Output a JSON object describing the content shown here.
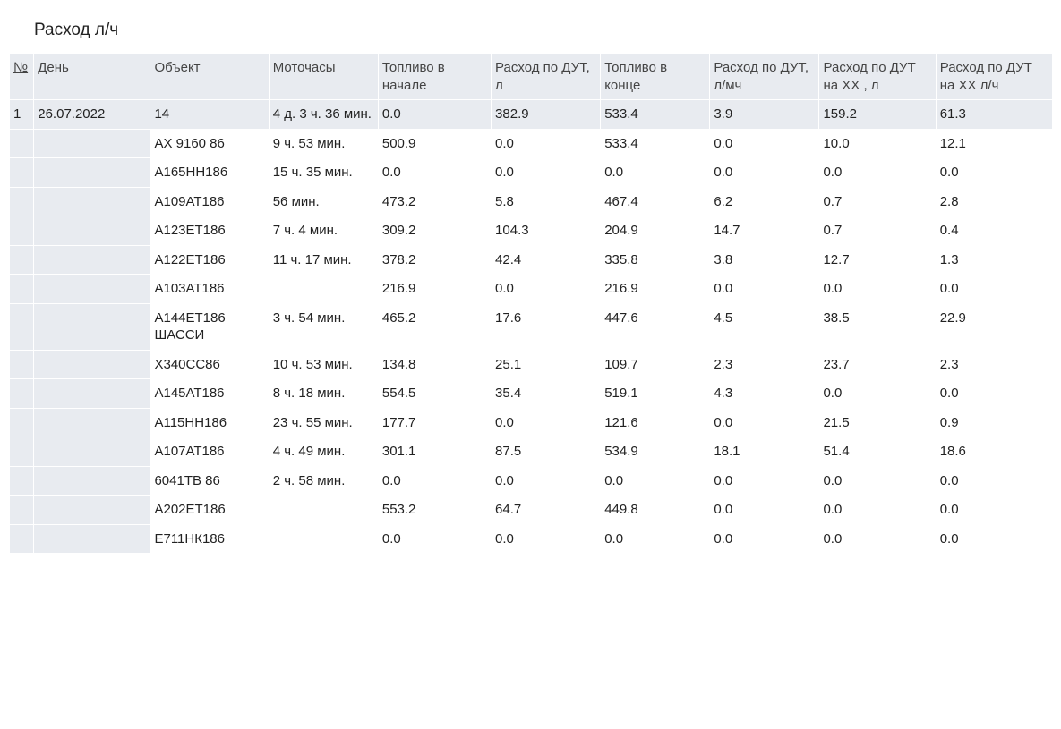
{
  "title": "Расход л/ч",
  "columns": [
    "№",
    "День",
    "Объект",
    "Моточасы",
    "Топливо в начале",
    "Расход по ДУТ, л",
    "Топливо в конце",
    "Расход по ДУТ, л/мч",
    "Расход по ДУТ на ХХ , л",
    "Расход по ДУТ на ХХ л/ч"
  ],
  "rows": [
    {
      "type": "summary",
      "num": "1",
      "day": "26.07.2022",
      "obj": "14",
      "hours": "4 д. 3 ч. 36 мин.",
      "fuel_start": "0.0",
      "cons_l": "382.9",
      "fuel_end": "533.4",
      "cons_lmh": "3.9",
      "cons_xx_l": "159.2",
      "cons_xx_lh": "61.3"
    },
    {
      "type": "detail",
      "num": "",
      "day": "",
      "obj": "АХ 9160 86",
      "hours": "9 ч. 53 мин.",
      "fuel_start": "500.9",
      "cons_l": "0.0",
      "fuel_end": "533.4",
      "cons_lmh": "0.0",
      "cons_xx_l": "10.0",
      "cons_xx_lh": "12.1"
    },
    {
      "type": "detail",
      "num": "",
      "day": "",
      "obj": "А165НН186",
      "hours": "15 ч. 35 мин.",
      "fuel_start": "0.0",
      "cons_l": "0.0",
      "fuel_end": "0.0",
      "cons_lmh": "0.0",
      "cons_xx_l": "0.0",
      "cons_xx_lh": "0.0"
    },
    {
      "type": "detail",
      "num": "",
      "day": "",
      "obj": "А109АТ186",
      "hours": "56 мин.",
      "fuel_start": "473.2",
      "cons_l": "5.8",
      "fuel_end": "467.4",
      "cons_lmh": "6.2",
      "cons_xx_l": "0.7",
      "cons_xx_lh": "2.8"
    },
    {
      "type": "detail",
      "num": "",
      "day": "",
      "obj": "А123ЕТ186",
      "hours": "7 ч. 4 мин.",
      "fuel_start": "309.2",
      "cons_l": "104.3",
      "fuel_end": "204.9",
      "cons_lmh": "14.7",
      "cons_xx_l": "0.7",
      "cons_xx_lh": "0.4"
    },
    {
      "type": "detail",
      "num": "",
      "day": "",
      "obj": "А122ЕТ186",
      "hours": "11 ч. 17 мин.",
      "fuel_start": "378.2",
      "cons_l": "42.4",
      "fuel_end": "335.8",
      "cons_lmh": "3.8",
      "cons_xx_l": "12.7",
      "cons_xx_lh": "1.3"
    },
    {
      "type": "detail",
      "num": "",
      "day": "",
      "obj": "А103АТ186",
      "hours": "",
      "fuel_start": "216.9",
      "cons_l": "0.0",
      "fuel_end": "216.9",
      "cons_lmh": "0.0",
      "cons_xx_l": "0.0",
      "cons_xx_lh": "0.0"
    },
    {
      "type": "detail",
      "num": "",
      "day": "",
      "obj": "А144ЕТ186 ШАССИ",
      "hours": "3 ч. 54 мин.",
      "fuel_start": "465.2",
      "cons_l": "17.6",
      "fuel_end": "447.6",
      "cons_lmh": "4.5",
      "cons_xx_l": "38.5",
      "cons_xx_lh": "22.9"
    },
    {
      "type": "detail",
      "num": "",
      "day": "",
      "obj": " Х340СС86",
      "hours": "10 ч. 53 мин.",
      "fuel_start": "134.8",
      "cons_l": "25.1",
      "fuel_end": "109.7",
      "cons_lmh": "2.3",
      "cons_xx_l": "23.7",
      "cons_xx_lh": "2.3"
    },
    {
      "type": "detail",
      "num": "",
      "day": "",
      "obj": "А145АТ186",
      "hours": "8 ч. 18 мин.",
      "fuel_start": "554.5",
      "cons_l": "35.4",
      "fuel_end": "519.1",
      "cons_lmh": "4.3",
      "cons_xx_l": "0.0",
      "cons_xx_lh": "0.0"
    },
    {
      "type": "detail",
      "num": "",
      "day": "",
      "obj": "А115НН186",
      "hours": "23 ч. 55 мин.",
      "fuel_start": "177.7",
      "cons_l": "0.0",
      "fuel_end": "121.6",
      "cons_lmh": "0.0",
      "cons_xx_l": "21.5",
      "cons_xx_lh": "0.9"
    },
    {
      "type": "detail",
      "num": "",
      "day": "",
      "obj": "А107АТ186",
      "hours": "4 ч. 49 мин.",
      "fuel_start": "301.1",
      "cons_l": "87.5",
      "fuel_end": "534.9",
      "cons_lmh": "18.1",
      "cons_xx_l": "51.4",
      "cons_xx_lh": "18.6"
    },
    {
      "type": "detail",
      "num": "",
      "day": "",
      "obj": "6041ТВ 86",
      "hours": "2 ч. 58 мин.",
      "fuel_start": "0.0",
      "cons_l": "0.0",
      "fuel_end": "0.0",
      "cons_lmh": "0.0",
      "cons_xx_l": "0.0",
      "cons_xx_lh": "0.0"
    },
    {
      "type": "detail",
      "num": "",
      "day": "",
      "obj": "А202ЕТ186",
      "hours": "",
      "fuel_start": "553.2",
      "cons_l": "64.7",
      "fuel_end": "449.8",
      "cons_lmh": "0.0",
      "cons_xx_l": "0.0",
      "cons_xx_lh": "0.0"
    },
    {
      "type": "detail",
      "num": "",
      "day": "",
      "obj": "Е711НК186",
      "hours": "",
      "fuel_start": "0.0",
      "cons_l": "0.0",
      "fuel_end": "0.0",
      "cons_lmh": "0.0",
      "cons_xx_l": "0.0",
      "cons_xx_lh": "0.0"
    }
  ],
  "column_classes": [
    "col-num",
    "col-day",
    "col-obj",
    "col-hours",
    "col-fuel-start",
    "col-cons-l",
    "col-fuel-end",
    "col-cons-lmh",
    "col-cons-xx-l",
    "col-cons-xx-lh"
  ],
  "row_keys": [
    "num",
    "day",
    "obj",
    "hours",
    "fuel_start",
    "cons_l",
    "fuel_end",
    "cons_lmh",
    "cons_xx_l",
    "cons_xx_lh"
  ]
}
